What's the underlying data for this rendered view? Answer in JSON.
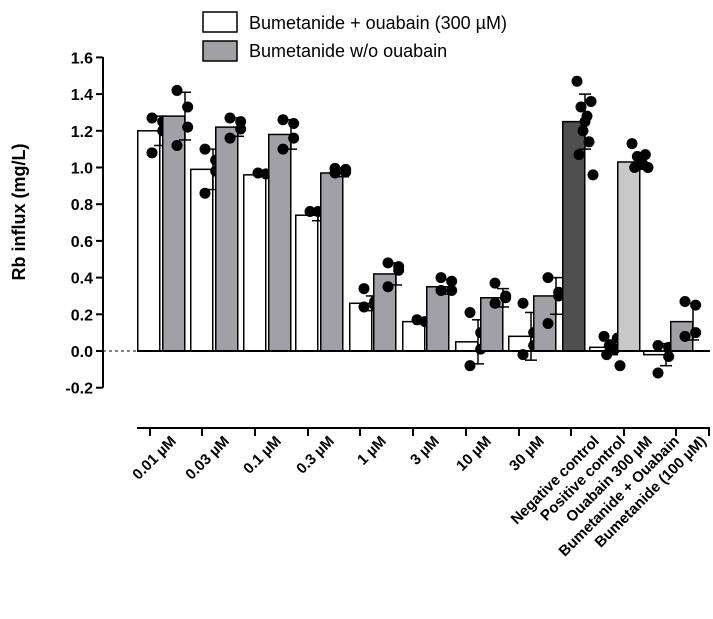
{
  "chart_data": {
    "type": "bar",
    "title": "",
    "ylabel": "Rb influx (mg/L)",
    "xlabel": "",
    "ylim": [
      -0.25,
      1.6
    ],
    "yticks": [
      -0.2,
      0.0,
      0.2,
      0.4,
      0.6,
      0.8,
      1.0,
      1.2,
      1.4,
      1.6
    ],
    "ytick_labels": [
      "-0.2",
      "0.0",
      "0.2",
      "0.4",
      "0.6",
      "0.8",
      "1.0",
      "1.2",
      "1.4",
      "1.6"
    ],
    "legend_position": "top",
    "legend": [
      {
        "name": "Bumetanide + ouabain (300 µM)",
        "color": "#ffffff"
      },
      {
        "name": "Bumetanide w/o ouabain",
        "color": "#a0a0a6"
      }
    ],
    "categories": [
      "0.01 µM",
      "0.03 µM",
      "0.1 µM",
      "0.3 µM",
      "1 µM",
      "3 µM",
      "10 µM",
      "30 µM",
      "Negative control",
      "Positive control",
      "Ouabain 300 µM",
      "Bumetanide + Ouabain",
      "Bumetanide (100 µM)"
    ],
    "bars": [
      {
        "category": "0.01 µM",
        "series": "Bumetanide + ouabain (300 µM)",
        "color": "#ffffff",
        "mean": 1.2,
        "sd": 0.08,
        "points": [
          1.27,
          1.25,
          1.2,
          1.08
        ]
      },
      {
        "category": "0.01 µM",
        "series": "Bumetanide w/o ouabain",
        "color": "#a0a0a6",
        "mean": 1.28,
        "sd": 0.13,
        "points": [
          1.42,
          1.33,
          1.22,
          1.12
        ]
      },
      {
        "category": "0.03 µM",
        "series": "Bumetanide + ouabain (300 µM)",
        "color": "#ffffff",
        "mean": 0.99,
        "sd": 0.11,
        "points": [
          1.1,
          1.04,
          0.98,
          0.86
        ]
      },
      {
        "category": "0.03 µM",
        "series": "Bumetanide w/o ouabain",
        "color": "#a0a0a6",
        "mean": 1.22,
        "sd": 0.05,
        "points": [
          1.27,
          1.25,
          1.21,
          1.16
        ]
      },
      {
        "category": "0.1 µM",
        "series": "Bumetanide + ouabain (300 µM)",
        "color": "#ffffff",
        "mean": 0.96,
        "sd": 0.01,
        "points": [
          0.97,
          0.965,
          0.96
        ]
      },
      {
        "category": "0.1 µM",
        "series": "Bumetanide w/o ouabain",
        "color": "#a0a0a6",
        "mean": 1.18,
        "sd": 0.08,
        "points": [
          1.26,
          1.24,
          1.16,
          1.1
        ]
      },
      {
        "category": "0.3 µM",
        "series": "Bumetanide + ouabain (300 µM)",
        "color": "#ffffff",
        "mean": 0.74,
        "sd": 0.03,
        "points": [
          0.76,
          0.76,
          0.68
        ]
      },
      {
        "category": "0.3 µM",
        "series": "Bumetanide w/o ouabain",
        "color": "#a0a0a6",
        "mean": 0.97,
        "sd": 0.02,
        "points": [
          0.995,
          0.99,
          0.975,
          0.97
        ]
      },
      {
        "category": "1 µM",
        "series": "Bumetanide + ouabain (300 µM)",
        "color": "#ffffff",
        "mean": 0.26,
        "sd": 0.04,
        "points": [
          0.34,
          0.27,
          0.25,
          0.24
        ]
      },
      {
        "category": "1 µM",
        "series": "Bumetanide w/o ouabain",
        "color": "#a0a0a6",
        "mean": 0.42,
        "sd": 0.06,
        "points": [
          0.48,
          0.46,
          0.44,
          0.35
        ]
      },
      {
        "category": "3 µM",
        "series": "Bumetanide + ouabain (300 µM)",
        "color": "#ffffff",
        "mean": 0.16,
        "sd": 0.01,
        "points": [
          0.17,
          0.16,
          0.15
        ]
      },
      {
        "category": "3 µM",
        "series": "Bumetanide w/o ouabain",
        "color": "#a0a0a6",
        "mean": 0.35,
        "sd": 0.04,
        "points": [
          0.4,
          0.38,
          0.33,
          0.33
        ]
      },
      {
        "category": "10 µM",
        "series": "Bumetanide + ouabain (300 µM)",
        "color": "#ffffff",
        "mean": 0.05,
        "sd": 0.12,
        "points": [
          0.21,
          0.1,
          0.01,
          -0.08
        ]
      },
      {
        "category": "10 µM",
        "series": "Bumetanide w/o ouabain",
        "color": "#a0a0a6",
        "mean": 0.29,
        "sd": 0.05,
        "points": [
          0.37,
          0.3,
          0.29,
          0.26
        ]
      },
      {
        "category": "30 µM",
        "series": "Bumetanide + ouabain (300 µM)",
        "color": "#ffffff",
        "mean": 0.08,
        "sd": 0.13,
        "points": [
          0.26,
          0.1,
          0.03,
          -0.02
        ]
      },
      {
        "category": "30 µM",
        "series": "Bumetanide w/o ouabain",
        "color": "#a0a0a6",
        "mean": 0.3,
        "sd": 0.1,
        "points": [
          0.4,
          0.32,
          0.3,
          0.15
        ]
      },
      {
        "category": "Negative control",
        "series": "",
        "color": "#4f4f4f",
        "mean": 1.25,
        "sd": 0.15,
        "points": [
          1.47,
          1.36,
          1.33,
          1.28,
          1.25,
          1.2,
          1.14,
          1.07,
          0.96
        ]
      },
      {
        "category": "Positive control",
        "series": "",
        "color": "#ffffff",
        "mean": 0.02,
        "sd": 0.04,
        "points": [
          0.08,
          0.07,
          0.03,
          0.02,
          0.01,
          -0.02,
          -0.08
        ]
      },
      {
        "category": "Ouabain 300 µM",
        "series": "",
        "color": "#c8c8c8",
        "mean": 1.03,
        "sd": 0.04,
        "points": [
          1.13,
          1.07,
          1.06,
          1.04,
          1.02,
          1.0,
          1.0
        ]
      },
      {
        "category": "Bumetanide + Ouabain",
        "series": "",
        "color": "#ffffff",
        "mean": -0.02,
        "sd": 0.06,
        "points": [
          0.03,
          0.02,
          -0.03,
          -0.12
        ]
      },
      {
        "category": "Bumetanide (100 µM)",
        "series": "",
        "color": "#a0a0a6",
        "mean": 0.16,
        "sd": 0.1,
        "points": [
          0.27,
          0.25,
          0.1,
          0.08
        ]
      }
    ]
  }
}
